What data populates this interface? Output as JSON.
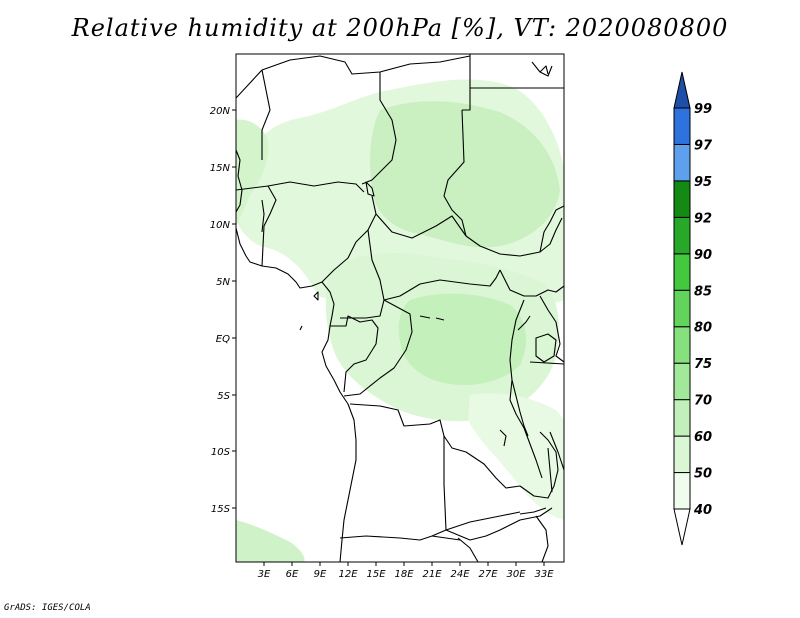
{
  "title": "Relative humidity at 200hPa [%], VT: 2020080800",
  "credit": "GrADS: IGES/COLA",
  "map": {
    "lat_labels": [
      "20N",
      "15N",
      "10N",
      "5N",
      "EQ",
      "5S",
      "10S",
      "15S"
    ],
    "lon_labels": [
      "3E",
      "6E",
      "9E",
      "12E",
      "15E",
      "18E",
      "21E",
      "24E",
      "27E",
      "30E",
      "33E"
    ]
  },
  "colorbar": {
    "levels": [
      "40",
      "50",
      "60",
      "70",
      "75",
      "80",
      "85",
      "90",
      "92",
      "95",
      "97",
      "99"
    ],
    "colors": [
      "#f0fcee",
      "#daf6d4",
      "#c2f0ba",
      "#a2e89a",
      "#86e07e",
      "#62d45c",
      "#44c83e",
      "#28a828",
      "#148a14",
      "#5ea0ee",
      "#2e72de",
      "#1e4ea8"
    ]
  }
}
